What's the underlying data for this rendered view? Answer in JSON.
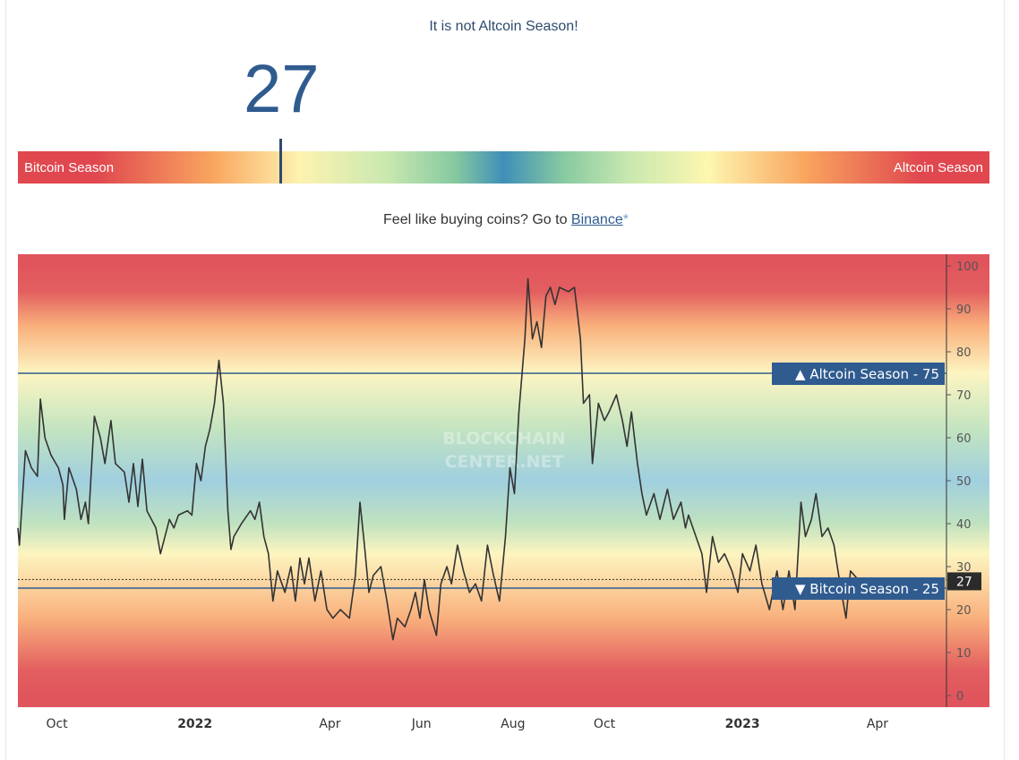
{
  "header": {
    "headline": "It is not Altcoin Season!",
    "index_value": "27"
  },
  "season_bar": {
    "left_label": "Bitcoin Season",
    "right_label": "Altcoin Season",
    "marker_value": 27
  },
  "promo": {
    "text": "Feel like buying coins? Go to ",
    "link_label": "Binance",
    "asterisk": "*"
  },
  "watermark": {
    "line1": "BLOCKCHAIN",
    "line2": "CENTER.NET"
  },
  "chart_data": {
    "type": "line",
    "title": "",
    "xlabel": "",
    "ylabel": "",
    "ylim": [
      0,
      100
    ],
    "xlim": [
      "2021-09-05",
      "2023-05-17"
    ],
    "yticks": [
      0,
      10,
      20,
      30,
      40,
      50,
      60,
      70,
      80,
      90,
      100
    ],
    "xticks": [
      {
        "date": "2021-10-01",
        "label": "Oct",
        "bold": false
      },
      {
        "date": "2022-01-01",
        "label": "2022",
        "bold": true
      },
      {
        "date": "2022-04-01",
        "label": "Apr",
        "bold": false
      },
      {
        "date": "2022-06-01",
        "label": "Jun",
        "bold": false
      },
      {
        "date": "2022-08-01",
        "label": "Aug",
        "bold": false
      },
      {
        "date": "2022-10-01",
        "label": "Oct",
        "bold": false
      },
      {
        "date": "2023-01-01",
        "label": "2023",
        "bold": true
      },
      {
        "date": "2023-04-01",
        "label": "Apr",
        "bold": false
      }
    ],
    "background_gradient": [
      {
        "value": 100,
        "color": "#e0555c"
      },
      {
        "value": 94,
        "color": "#e35f60"
      },
      {
        "value": 86,
        "color": "#f9b07c"
      },
      {
        "value": 75,
        "color": "#fdf5c2"
      },
      {
        "value": 62,
        "color": "#c3e4c0"
      },
      {
        "value": 50,
        "color": "#a0cfdf"
      },
      {
        "value": 40,
        "color": "#c0e2bf"
      },
      {
        "value": 33,
        "color": "#fdf5c0"
      },
      {
        "value": 18,
        "color": "#f9b07c"
      },
      {
        "value": 6,
        "color": "#e35f60"
      },
      {
        "value": 0,
        "color": "#e0555c"
      }
    ],
    "line_color": "#333333",
    "reference_lines": [
      {
        "value": 75,
        "label": "▲ Altcoin Season",
        "value_label": "75",
        "color": "#2f5b8f"
      },
      {
        "value": 25,
        "label": "▼ Bitcoin Season",
        "value_label": "25",
        "color": "#2f5b8f"
      }
    ],
    "current": {
      "value": 27,
      "label": "27"
    },
    "points": [
      [
        "2021-09-05",
        39
      ],
      [
        "2021-09-06",
        35
      ],
      [
        "2021-09-10",
        57
      ],
      [
        "2021-09-14",
        53
      ],
      [
        "2021-09-18",
        51
      ],
      [
        "2021-09-20",
        69
      ],
      [
        "2021-09-23",
        60
      ],
      [
        "2021-09-27",
        56
      ],
      [
        "2021-10-02",
        53
      ],
      [
        "2021-10-05",
        49
      ],
      [
        "2021-10-06",
        41
      ],
      [
        "2021-10-09",
        53
      ],
      [
        "2021-10-14",
        48
      ],
      [
        "2021-10-17",
        41
      ],
      [
        "2021-10-20",
        45
      ],
      [
        "2021-10-22",
        40
      ],
      [
        "2021-10-26",
        65
      ],
      [
        "2021-10-30",
        60
      ],
      [
        "2021-11-02",
        54
      ],
      [
        "2021-11-06",
        64
      ],
      [
        "2021-11-09",
        54
      ],
      [
        "2021-11-15",
        52
      ],
      [
        "2021-11-18",
        45
      ],
      [
        "2021-11-21",
        54
      ],
      [
        "2021-11-24",
        44
      ],
      [
        "2021-11-27",
        55
      ],
      [
        "2021-11-30",
        43
      ],
      [
        "2021-12-06",
        39
      ],
      [
        "2021-12-09",
        33
      ],
      [
        "2021-12-12",
        37
      ],
      [
        "2021-12-15",
        41
      ],
      [
        "2021-12-18",
        39
      ],
      [
        "2021-12-21",
        42
      ],
      [
        "2021-12-27",
        43
      ],
      [
        "2021-12-30",
        42
      ],
      [
        "2022-01-02",
        54
      ],
      [
        "2022-01-05",
        50
      ],
      [
        "2022-01-08",
        58
      ],
      [
        "2022-01-11",
        62
      ],
      [
        "2022-01-14",
        68
      ],
      [
        "2022-01-17",
        78
      ],
      [
        "2022-01-20",
        68
      ],
      [
        "2022-01-23",
        43
      ],
      [
        "2022-01-25",
        34
      ],
      [
        "2022-01-27",
        37
      ],
      [
        "2022-02-01",
        40
      ],
      [
        "2022-02-07",
        43
      ],
      [
        "2022-02-10",
        41
      ],
      [
        "2022-02-13",
        45
      ],
      [
        "2022-02-16",
        37
      ],
      [
        "2022-02-19",
        33
      ],
      [
        "2022-02-22",
        22
      ],
      [
        "2022-02-25",
        29
      ],
      [
        "2022-03-02",
        24
      ],
      [
        "2022-03-06",
        30
      ],
      [
        "2022-03-09",
        22
      ],
      [
        "2022-03-12",
        32
      ],
      [
        "2022-03-15",
        26
      ],
      [
        "2022-03-18",
        32
      ],
      [
        "2022-03-22",
        22
      ],
      [
        "2022-03-26",
        29
      ],
      [
        "2022-03-30",
        20
      ],
      [
        "2022-04-03",
        18
      ],
      [
        "2022-04-08",
        20
      ],
      [
        "2022-04-14",
        18
      ],
      [
        "2022-04-18",
        28
      ],
      [
        "2022-04-21",
        45
      ],
      [
        "2022-04-24",
        35
      ],
      [
        "2022-04-27",
        24
      ],
      [
        "2022-04-30",
        28
      ],
      [
        "2022-05-05",
        30
      ],
      [
        "2022-05-09",
        22
      ],
      [
        "2022-05-13",
        13
      ],
      [
        "2022-05-16",
        18
      ],
      [
        "2022-05-21",
        16
      ],
      [
        "2022-05-25",
        20
      ],
      [
        "2022-05-28",
        24
      ],
      [
        "2022-05-31",
        18
      ],
      [
        "2022-06-03",
        27
      ],
      [
        "2022-06-06",
        20
      ],
      [
        "2022-06-11",
        14
      ],
      [
        "2022-06-14",
        26
      ],
      [
        "2022-06-18",
        30
      ],
      [
        "2022-06-21",
        26
      ],
      [
        "2022-06-25",
        35
      ],
      [
        "2022-06-29",
        29
      ],
      [
        "2022-07-03",
        24
      ],
      [
        "2022-07-07",
        26
      ],
      [
        "2022-07-11",
        22
      ],
      [
        "2022-07-15",
        35
      ],
      [
        "2022-07-19",
        28
      ],
      [
        "2022-07-23",
        22
      ],
      [
        "2022-07-27",
        37
      ],
      [
        "2022-07-30",
        53
      ],
      [
        "2022-08-02",
        47
      ],
      [
        "2022-08-05",
        66
      ],
      [
        "2022-08-09",
        83
      ],
      [
        "2022-08-11",
        97
      ],
      [
        "2022-08-14",
        83
      ],
      [
        "2022-08-17",
        87
      ],
      [
        "2022-08-20",
        81
      ],
      [
        "2022-08-23",
        93
      ],
      [
        "2022-08-26",
        95
      ],
      [
        "2022-08-29",
        91
      ],
      [
        "2022-09-01",
        95
      ],
      [
        "2022-09-07",
        94
      ],
      [
        "2022-09-11",
        95
      ],
      [
        "2022-09-15",
        83
      ],
      [
        "2022-09-17",
        68
      ],
      [
        "2022-09-21",
        70
      ],
      [
        "2022-09-23",
        54
      ],
      [
        "2022-09-27",
        68
      ],
      [
        "2022-10-01",
        64
      ],
      [
        "2022-10-04",
        66
      ],
      [
        "2022-10-09",
        70
      ],
      [
        "2022-10-13",
        64
      ],
      [
        "2022-10-16",
        58
      ],
      [
        "2022-10-19",
        66
      ],
      [
        "2022-10-23",
        54
      ],
      [
        "2022-10-26",
        47
      ],
      [
        "2022-10-29",
        42
      ],
      [
        "2022-11-03",
        47
      ],
      [
        "2022-11-07",
        41
      ],
      [
        "2022-11-12",
        48
      ],
      [
        "2022-11-16",
        41
      ],
      [
        "2022-11-21",
        45
      ],
      [
        "2022-11-24",
        39
      ],
      [
        "2022-11-26",
        42
      ],
      [
        "2022-12-01",
        37
      ],
      [
        "2022-12-05",
        33
      ],
      [
        "2022-12-08",
        24
      ],
      [
        "2022-12-12",
        37
      ],
      [
        "2022-12-16",
        31
      ],
      [
        "2022-12-20",
        33
      ],
      [
        "2022-12-25",
        29
      ],
      [
        "2022-12-29",
        24
      ],
      [
        "2023-01-01",
        33
      ],
      [
        "2023-01-06",
        29
      ],
      [
        "2023-01-10",
        35
      ],
      [
        "2023-01-14",
        26
      ],
      [
        "2023-01-19",
        20
      ],
      [
        "2023-01-24",
        29
      ],
      [
        "2023-01-28",
        20
      ],
      [
        "2023-02-01",
        29
      ],
      [
        "2023-02-05",
        20
      ],
      [
        "2023-02-09",
        45
      ],
      [
        "2023-02-12",
        37
      ],
      [
        "2023-02-16",
        41
      ],
      [
        "2023-02-19",
        47
      ],
      [
        "2023-02-23",
        37
      ],
      [
        "2023-02-27",
        39
      ],
      [
        "2023-03-03",
        35
      ],
      [
        "2023-03-07",
        26
      ],
      [
        "2023-03-11",
        18
      ],
      [
        "2023-03-14",
        29
      ],
      [
        "2023-03-19",
        27
      ],
      [
        "2023-03-23",
        27
      ],
      [
        "2023-03-27",
        25
      ],
      [
        "2023-04-01",
        27
      ],
      [
        "2023-04-06",
        27
      ]
    ]
  }
}
